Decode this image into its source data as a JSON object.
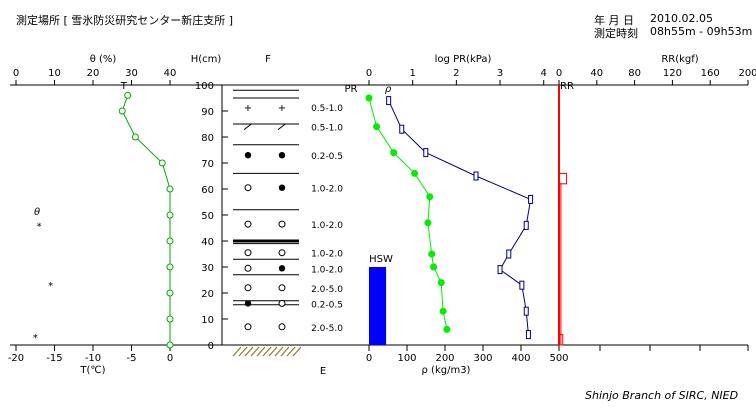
{
  "header": {
    "location": "測定場所 [ 雪氷防災研究センター新庄支所 ]",
    "date_label": "年 月 日",
    "date_value": "2010.02.05",
    "time_label": "測定時刻",
    "time_value": "08h55m - 09h53m"
  },
  "footer": {
    "credit": "Shinjo Branch of SIRC, NIED"
  },
  "colors": {
    "theta": "#00cc00",
    "temperature": "#00aa00",
    "pr": "#000080",
    "density": "#00ee00",
    "rr": "#ff0000",
    "hsw": "#0000ff",
    "ground": "#8b7d2a",
    "axis": "#000000"
  },
  "chart_data": [
    {
      "id": "theta-temperature",
      "type": "line",
      "theta_axis": {
        "label": "θ (%)",
        "ticks": [
          0,
          10,
          20,
          30,
          40
        ],
        "lim": [
          0,
          40
        ],
        "marker_label": "T"
      },
      "temp_axis": {
        "label": "T(℃)",
        "ticks": [
          -20,
          -15,
          -10,
          -5,
          0
        ],
        "lim": [
          -20,
          0
        ]
      },
      "y_axis": {
        "label": "H(cm)",
        "ticks": [
          0,
          10,
          20,
          30,
          40,
          50,
          60,
          70,
          80,
          90,
          100
        ],
        "lim": [
          0,
          100
        ]
      },
      "temperature_series": {
        "name": "T",
        "points": [
          [
            -5.5,
            96
          ],
          [
            -6.2,
            90
          ],
          [
            -4.5,
            80
          ],
          [
            -1,
            70
          ],
          [
            0,
            60
          ],
          [
            0,
            50
          ],
          [
            0,
            40
          ],
          [
            0,
            30
          ],
          [
            0,
            20
          ],
          [
            0,
            10
          ],
          [
            0,
            0
          ]
        ]
      },
      "theta_markers": {
        "symbol_label": "θ",
        "star_symbol": "*",
        "points": [
          [
            6,
            46
          ],
          [
            9,
            23
          ],
          [
            5,
            3
          ]
        ]
      }
    },
    {
      "id": "snow-layers",
      "type": "table",
      "title": "F",
      "bottom_label": "E",
      "boundaries": [
        98,
        95,
        85,
        77,
        66,
        52,
        40,
        39,
        33,
        27,
        17,
        15.5,
        0
      ],
      "layers": [
        {
          "h": 91.5,
          "symbols": [
            "+",
            "+"
          ],
          "range": "0.5-1.0"
        },
        {
          "h": 84,
          "symbols": [
            "⟋",
            "⟋"
          ],
          "range": "0.5-1.0"
        },
        {
          "h": 73,
          "symbols": [
            "●",
            "●"
          ],
          "range": "0.2-0.5"
        },
        {
          "h": 60.5,
          "symbols": [
            "○",
            "●"
          ],
          "range": "1.0-2.0"
        },
        {
          "h": 46.5,
          "symbols": [
            "○",
            "○"
          ],
          "range": "1.0-2.0"
        },
        {
          "h": 35.5,
          "symbols": [
            "○",
            "○"
          ],
          "range": "1.0-2.0"
        },
        {
          "h": 29.5,
          "symbols": [
            "○",
            "●"
          ],
          "range": "1.0-2.0"
        },
        {
          "h": 22,
          "symbols": [
            "○",
            "○"
          ],
          "range": "2.0-5.0"
        },
        {
          "h": 16,
          "symbols": [
            "●",
            "○"
          ],
          "range": "0.2-0.5"
        },
        {
          "h": 7,
          "symbols": [
            "○",
            "○"
          ],
          "range": "2.0-5.0"
        }
      ]
    },
    {
      "id": "pr-density",
      "type": "line",
      "log_axis": {
        "label": "log PR(kPa)",
        "ticks": [
          0,
          1,
          2,
          3,
          4
        ],
        "lim": [
          0,
          4.35
        ]
      },
      "density_axis": {
        "label": "ρ (kg/m3)",
        "ticks": [
          0,
          100,
          200,
          300,
          400,
          500
        ],
        "lim": [
          0,
          500
        ]
      },
      "pr_label": "PR",
      "rho_label": "ρ",
      "pr_series": {
        "name": "PR",
        "points": [
          [
            0.45,
            94
          ],
          [
            0.75,
            83
          ],
          [
            1.3,
            74
          ],
          [
            2.45,
            65
          ],
          [
            3.7,
            56
          ],
          [
            3.6,
            46
          ],
          [
            3.2,
            35
          ],
          [
            3.0,
            29
          ],
          [
            3.5,
            23
          ],
          [
            3.6,
            13
          ],
          [
            3.65,
            4
          ]
        ]
      },
      "density_series": {
        "name": "ρ",
        "points": [
          [
            0,
            95
          ],
          [
            20,
            84
          ],
          [
            65,
            74
          ],
          [
            120,
            66
          ],
          [
            160,
            57
          ],
          [
            155,
            47
          ],
          [
            165,
            35
          ],
          [
            170,
            30
          ],
          [
            190,
            24
          ],
          [
            195,
            13
          ],
          [
            205,
            6
          ]
        ]
      },
      "hsw": {
        "label": "HSW",
        "density_from": 0,
        "density_to": 45,
        "height": 30
      }
    },
    {
      "id": "rr",
      "type": "bar",
      "x_axis": {
        "label": "RR(kgf)",
        "ticks": [
          0,
          40,
          80,
          120,
          160,
          200
        ],
        "lim": [
          0,
          200
        ]
      },
      "marker_label": "RR",
      "base_line": {
        "x": 0,
        "h_from": 0,
        "h_to": 100
      },
      "steps": [
        {
          "h_from": 62,
          "h_to": 66,
          "value": 8
        },
        {
          "h_from": 0,
          "h_to": 62,
          "value": 2
        },
        {
          "h_from": 0,
          "h_to": 4,
          "value": 4
        }
      ]
    }
  ]
}
